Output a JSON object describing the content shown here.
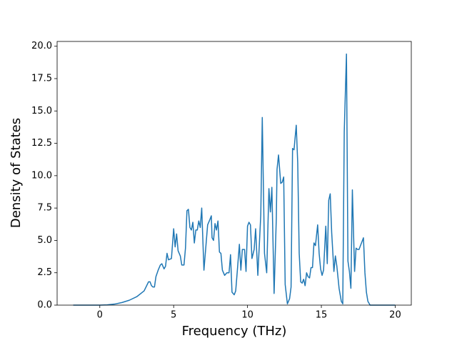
{
  "chart_data": {
    "type": "line",
    "x_label": "Frequency (THz)",
    "y_label": "Density of States",
    "color": "#1f77b4",
    "x": [
      -1.8,
      -1,
      0,
      0.5,
      1,
      1.5,
      2,
      2.5,
      3,
      3.3,
      3.4,
      3.5,
      3.6,
      3.7,
      3.8,
      3.95,
      4.1,
      4.2,
      4.35,
      4.45,
      4.55,
      4.65,
      4.85,
      5.0,
      5.1,
      5.2,
      5.3,
      5.45,
      5.55,
      5.7,
      5.8,
      5.9,
      6.0,
      6.1,
      6.2,
      6.3,
      6.4,
      6.5,
      6.6,
      6.7,
      6.8,
      6.9,
      7.05,
      7.2,
      7.3,
      7.45,
      7.55,
      7.6,
      7.7,
      7.8,
      7.9,
      8.0,
      8.1,
      8.2,
      8.3,
      8.45,
      8.6,
      8.75,
      8.85,
      8.95,
      9.1,
      9.2,
      9.3,
      9.45,
      9.55,
      9.65,
      9.8,
      9.9,
      10.0,
      10.1,
      10.2,
      10.3,
      10.45,
      10.55,
      10.7,
      10.9,
      11.0,
      11.15,
      11.3,
      11.45,
      11.55,
      11.65,
      11.8,
      11.95,
      12.0,
      12.1,
      12.25,
      12.35,
      12.45,
      12.55,
      12.7,
      12.85,
      12.95,
      13.05,
      13.15,
      13.3,
      13.4,
      13.5,
      13.6,
      13.7,
      13.8,
      13.9,
      14.0,
      14.1,
      14.2,
      14.3,
      14.4,
      14.5,
      14.6,
      14.75,
      14.85,
      14.95,
      15.05,
      15.15,
      15.3,
      15.4,
      15.5,
      15.6,
      15.7,
      15.85,
      15.95,
      16.05,
      16.2,
      16.35,
      16.45,
      16.55,
      16.7,
      16.8,
      16.9,
      17.0,
      17.1,
      17.25,
      17.35,
      17.45,
      17.55,
      17.65,
      17.75,
      17.85,
      17.95,
      18.05,
      18.15,
      18.3,
      19,
      20
    ],
    "values": [
      0,
      0,
      0,
      0.02,
      0.08,
      0.2,
      0.38,
      0.65,
      1.1,
      1.8,
      1.8,
      1.5,
      1.4,
      1.4,
      2.2,
      2.7,
      3.1,
      3.2,
      2.8,
      3.0,
      4.0,
      3.5,
      3.6,
      5.9,
      4.5,
      5.5,
      4.2,
      3.8,
      3.1,
      3.1,
      4.4,
      7.3,
      7.4,
      6.0,
      5.8,
      6.4,
      4.8,
      5.8,
      5.8,
      6.5,
      6.0,
      7.5,
      2.7,
      4.8,
      6.2,
      6.6,
      6.9,
      5.2,
      5.0,
      6.3,
      5.8,
      6.5,
      4.1,
      4.0,
      2.7,
      2.3,
      2.5,
      2.5,
      3.9,
      1.0,
      0.8,
      1.1,
      2.5,
      4.7,
      2.7,
      4.3,
      4.3,
      2.6,
      6.1,
      6.4,
      6.2,
      3.6,
      4.3,
      5.9,
      2.3,
      7.0,
      14.5,
      4.0,
      2.5,
      9.0,
      7.2,
      9.1,
      0.9,
      6.7,
      10.5,
      11.6,
      9.4,
      9.5,
      9.9,
      1.6,
      0.1,
      0.5,
      1.4,
      12.1,
      12.0,
      13.9,
      11.0,
      4.0,
      1.8,
      1.7,
      2.0,
      1.5,
      2.5,
      2.2,
      2.1,
      2.9,
      2.9,
      4.8,
      4.6,
      6.2,
      4.0,
      2.8,
      2.3,
      2.7,
      6.1,
      3.2,
      8.1,
      8.6,
      5.6,
      2.6,
      3.8,
      3.0,
      1.3,
      0.3,
      0.1,
      13.4,
      19.4,
      3.4,
      2.6,
      1.3,
      8.9,
      2.6,
      4.4,
      4.3,
      4.3,
      4.6,
      4.9,
      5.2,
      2.5,
      1.0,
      0.3,
      0,
      0,
      0
    ],
    "xlim": [
      -2.89,
      21.09
    ],
    "ylim": [
      0,
      20.37
    ],
    "xticks": [
      0,
      5,
      10,
      15,
      20
    ],
    "yticks": [
      {
        "value": 0,
        "label": "0.0"
      },
      {
        "value": 2.5,
        "label": "2.5"
      },
      {
        "value": 5,
        "label": "5.0"
      },
      {
        "value": 7.5,
        "label": "7.5"
      },
      {
        "value": 10,
        "label": "10.0"
      },
      {
        "value": 12.5,
        "label": "12.5"
      },
      {
        "value": 15,
        "label": "15.0"
      },
      {
        "value": 17.5,
        "label": "17.5"
      },
      {
        "value": 20,
        "label": "20.0"
      }
    ]
  }
}
